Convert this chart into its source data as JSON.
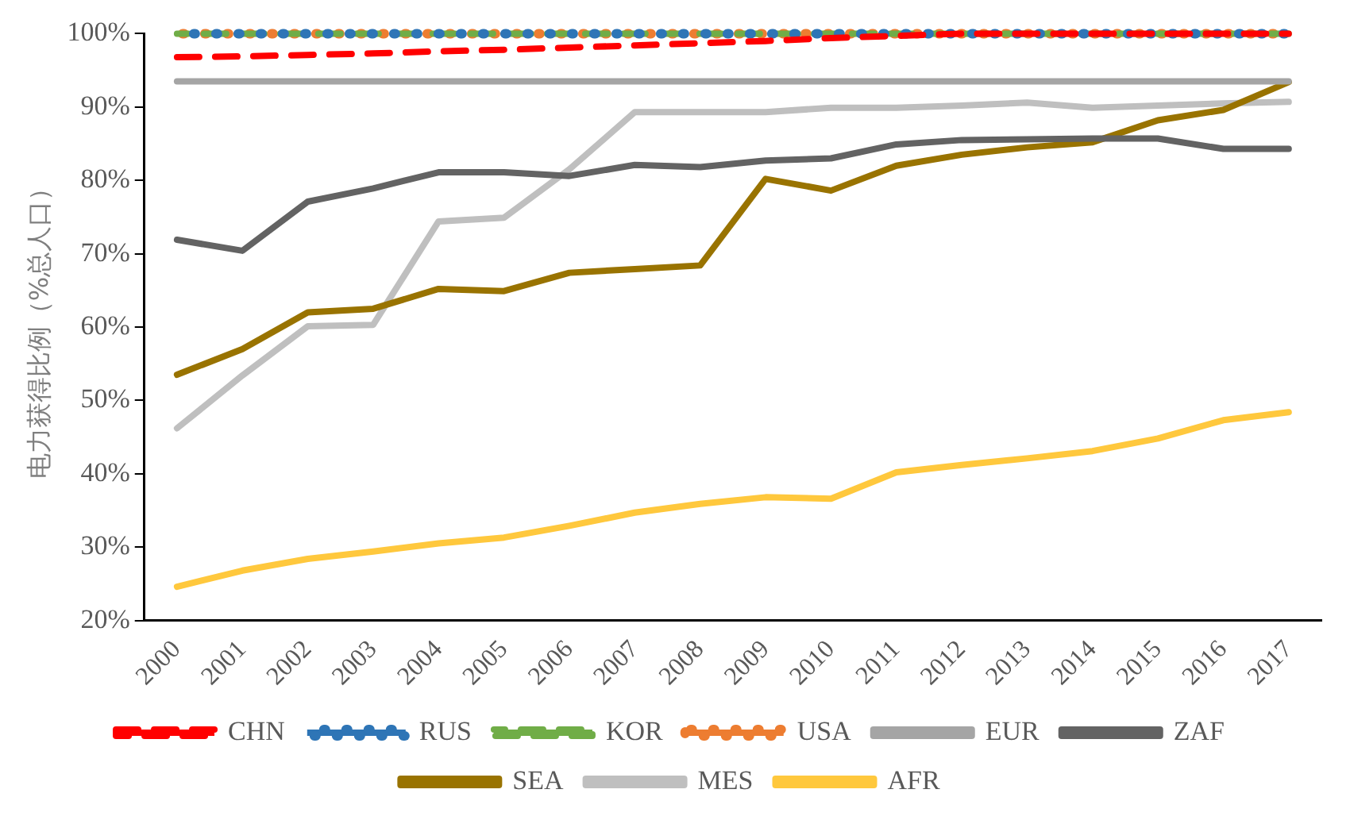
{
  "chart_data": {
    "type": "line",
    "ylabel": "电力获得比例（%总人口）",
    "categories": [
      "2000",
      "2001",
      "2002",
      "2003",
      "2004",
      "2005",
      "2006",
      "2007",
      "2008",
      "2009",
      "2010",
      "2011",
      "2012",
      "2013",
      "2014",
      "2015",
      "2016",
      "2017"
    ],
    "ylim": [
      20,
      100
    ],
    "yticks": [
      {
        "value": 20,
        "label": "20%"
      },
      {
        "value": 30,
        "label": "30%"
      },
      {
        "value": 40,
        "label": "40%"
      },
      {
        "value": 50,
        "label": "50%"
      },
      {
        "value": 60,
        "label": "60%"
      },
      {
        "value": 70,
        "label": "70%"
      },
      {
        "value": 80,
        "label": "80%"
      },
      {
        "value": 90,
        "label": "90%"
      },
      {
        "value": 100,
        "label": "100%"
      }
    ],
    "grid": false,
    "legend": "bottom",
    "marker": "none",
    "series": [
      {
        "name": "CHN",
        "color": "#ff0000",
        "line_style": "dashed",
        "values": [
          96.8,
          96.9,
          97.1,
          97.3,
          97.6,
          97.8,
          98.1,
          98.4,
          98.7,
          99.0,
          99.4,
          99.7,
          100,
          100,
          100,
          100,
          100,
          100
        ]
      },
      {
        "name": "RUS",
        "color": "#2e75b6",
        "line_style": "dotted",
        "values": [
          100,
          100,
          100,
          100,
          100,
          100,
          100,
          100,
          100,
          100,
          100,
          100,
          100,
          100,
          100,
          100,
          100,
          100
        ]
      },
      {
        "name": "KOR",
        "color": "#70ad47",
        "line_style": "dashed",
        "values": [
          100,
          100,
          100,
          100,
          100,
          100,
          100,
          100,
          100,
          100,
          100,
          100,
          100,
          100,
          100,
          100,
          100,
          100
        ]
      },
      {
        "name": "USA",
        "color": "#ed7d31",
        "line_style": "dotted",
        "values": [
          100,
          100,
          100,
          100,
          100,
          100,
          100,
          100,
          100,
          100,
          100,
          100,
          100,
          100,
          100,
          100,
          100,
          100
        ]
      },
      {
        "name": "EUR",
        "color": "#a5a5a5",
        "line_style": "solid",
        "values": [
          93.5,
          93.5,
          93.5,
          93.5,
          93.5,
          93.5,
          93.5,
          93.5,
          93.5,
          93.5,
          93.5,
          93.5,
          93.5,
          93.5,
          93.5,
          93.5,
          93.5,
          93.5
        ]
      },
      {
        "name": "ZAF",
        "color": "#636363",
        "line_style": "solid",
        "values": [
          71.9,
          70.4,
          77.1,
          78.9,
          81.1,
          81.1,
          80.6,
          82.1,
          81.8,
          82.7,
          83.0,
          84.9,
          85.5,
          85.6,
          85.7,
          85.7,
          84.3,
          84.3
        ]
      },
      {
        "name": "SEA",
        "color": "#997300",
        "line_style": "solid",
        "values": [
          53.5,
          57.0,
          62.0,
          62.5,
          65.2,
          64.9,
          67.4,
          67.9,
          68.4,
          80.2,
          78.6,
          82.0,
          83.5,
          84.5,
          85.2,
          88.2,
          89.6,
          93.4
        ]
      },
      {
        "name": "MES",
        "color": "#bfbfbf",
        "line_style": "solid",
        "values": [
          46.2,
          53.4,
          60.1,
          60.3,
          74.4,
          74.9,
          81.5,
          89.3,
          89.3,
          89.3,
          89.9,
          89.9,
          90.2,
          90.6,
          89.9,
          90.2,
          90.5,
          90.7
        ]
      },
      {
        "name": "AFR",
        "color": "#ffc83d",
        "line_style": "solid",
        "values": [
          24.6,
          26.8,
          28.4,
          29.4,
          30.5,
          31.3,
          32.9,
          34.7,
          35.9,
          36.8,
          36.6,
          40.2,
          41.2,
          42.1,
          43.1,
          44.8,
          47.3,
          48.4
        ]
      }
    ]
  }
}
